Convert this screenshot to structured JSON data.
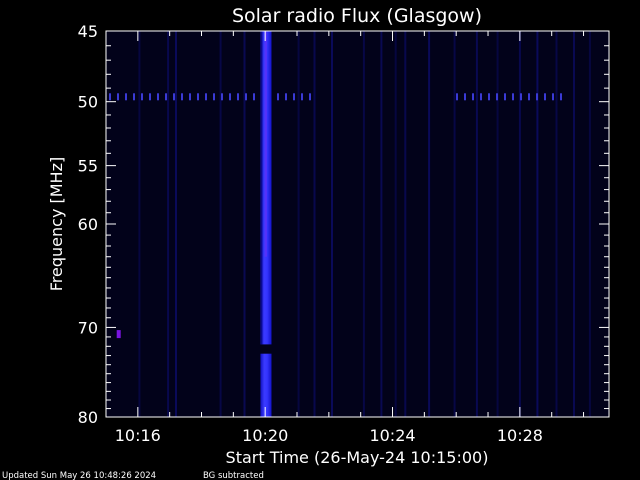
{
  "chart_data": {
    "type": "heatmap",
    "title": "Solar radio Flux (Glasgow)",
    "xlabel": "Start Time (26-May-24 10:15:00)",
    "ylabel": "Frequency [MHz]",
    "x_axis": {
      "unit": "minutes after 10:15:00",
      "range": [
        0.0,
        15.8
      ],
      "ticks": [
        {
          "value": 1,
          "label": "10:16"
        },
        {
          "value": 5,
          "label": "10:20"
        },
        {
          "value": 9,
          "label": "10:24"
        },
        {
          "value": 13,
          "label": "10:28"
        }
      ]
    },
    "y_axis": {
      "unit": "MHz",
      "range": [
        45,
        80
      ],
      "scale": "log",
      "inverted": true,
      "ticks": [
        {
          "value": 45,
          "label": "45"
        },
        {
          "value": 50,
          "label": "50"
        },
        {
          "value": 55,
          "label": "55"
        },
        {
          "value": 60,
          "label": "60"
        },
        {
          "value": 70,
          "label": "70"
        },
        {
          "value": 80,
          "label": "80"
        }
      ]
    },
    "colors": {
      "background": "#000000",
      "axis": "#ffffff",
      "plot_bg": "#02021a",
      "burst": "#2a2aff",
      "burst_core": "#4848ff",
      "burst_hot": "#8a2cf0",
      "interference": "#3a3ad6",
      "faint_line": "#0b0b60",
      "hot_pixel": "#7a14e0"
    },
    "events": {
      "burst": {
        "time_range": [
          4.85,
          5.2
        ],
        "freq_range": [
          45,
          80
        ]
      },
      "burst_gap": {
        "freq_range": [
          71.8,
          72.8
        ]
      },
      "interference_band": {
        "freq": 49.6,
        "time_ranges": [
          [
            0.0,
            6.4
          ],
          [
            10.9,
            14.3
          ]
        ]
      },
      "hot_pixel": {
        "time": 0.4,
        "freq": 70.7
      },
      "faint_lines": [
        1.05,
        1.95,
        2.2,
        3.6,
        4.35,
        6.05,
        6.55,
        7.1,
        8.1,
        8.65,
        9.1,
        9.4,
        10.15,
        10.95,
        11.65,
        12.3,
        13.0,
        13.55,
        14.15,
        14.7,
        15.2
      ]
    }
  },
  "footer": {
    "updated": "Updated Sun May 26 10:48:26 2024",
    "bg_note": "BG subtracted"
  }
}
